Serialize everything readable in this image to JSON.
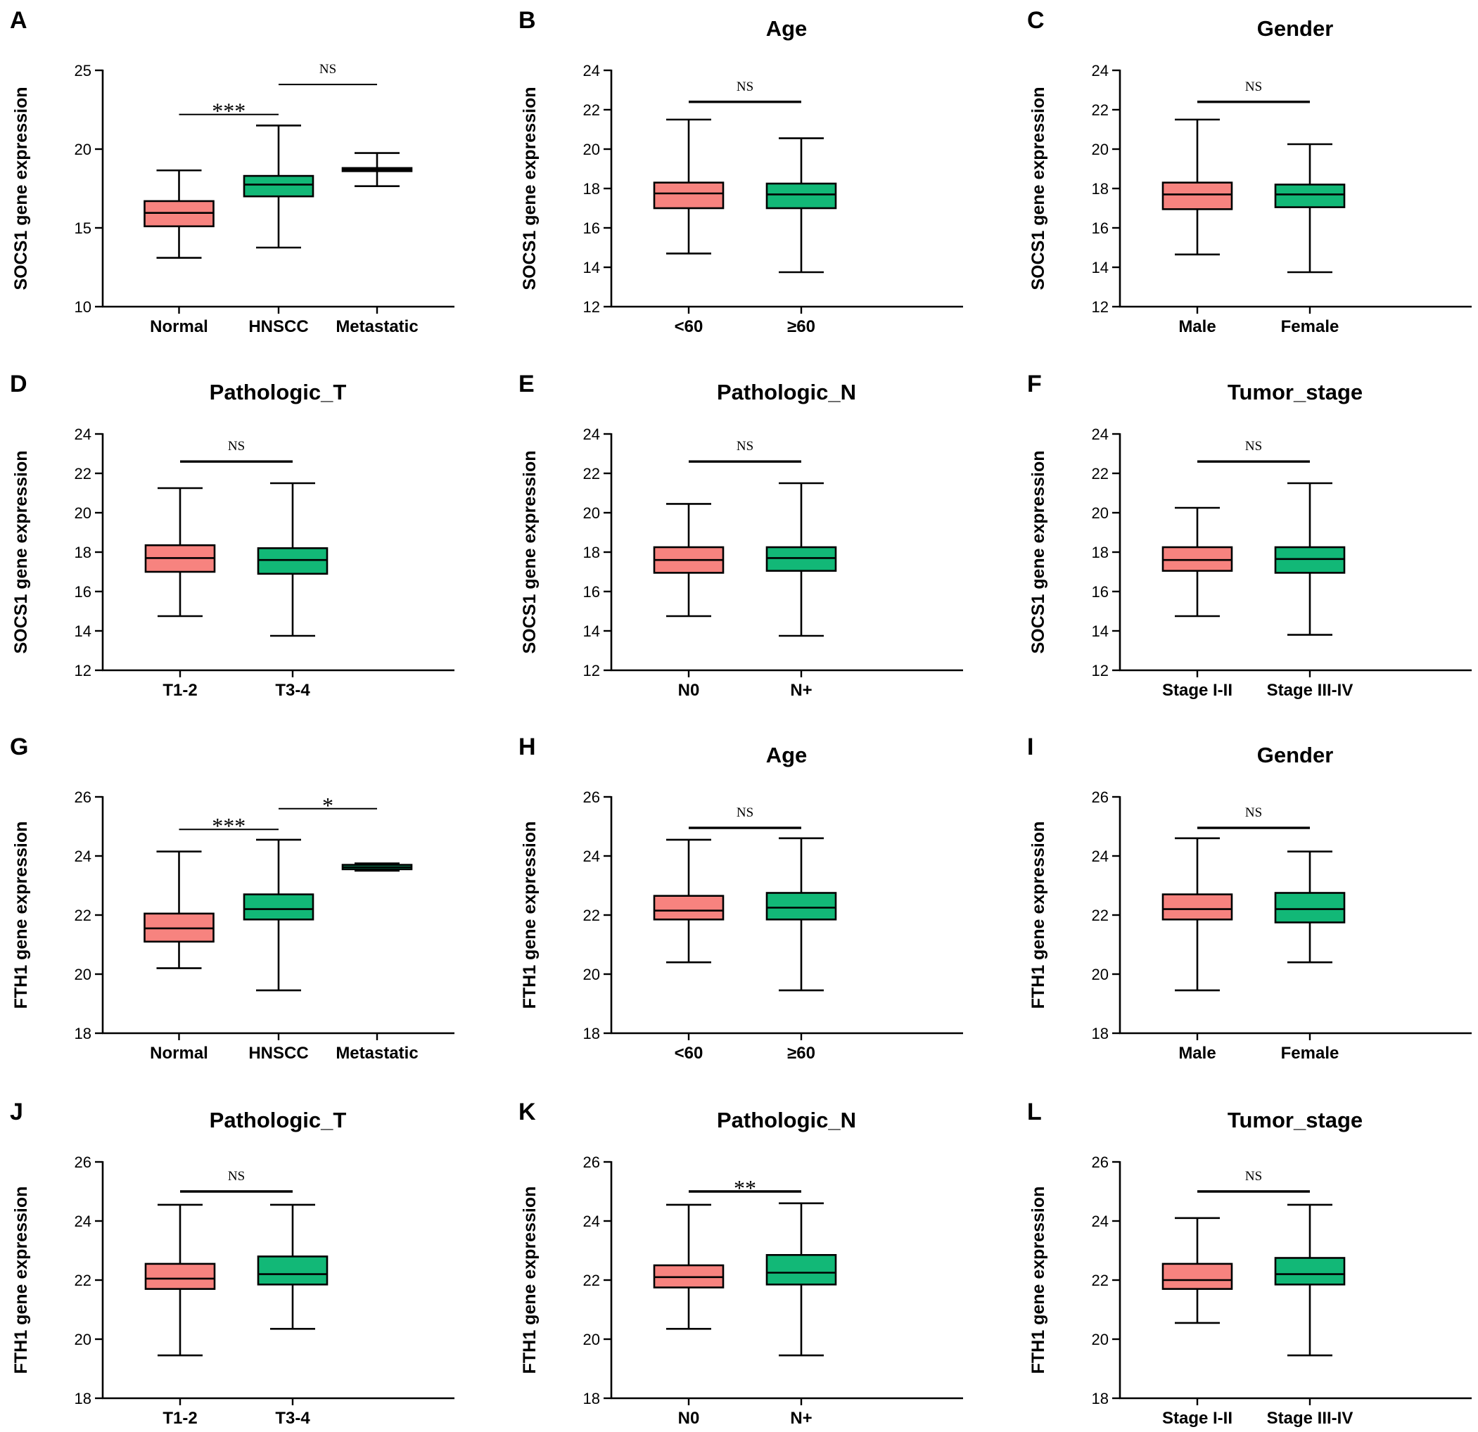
{
  "colors": {
    "pink": "#f7837f",
    "green": "#12b877",
    "line": "#000000"
  },
  "chart_data": [
    {
      "letter": "A",
      "type": "boxplot",
      "title": "",
      "ylabel": "SOCS1 gene expression",
      "ylim": [
        10,
        25
      ],
      "yticks": [
        10,
        15,
        20,
        25
      ],
      "categories": [
        "Normal",
        "HNSCC",
        "Metastatic"
      ],
      "boxes": [
        {
          "min": 13.1,
          "q1": 15.1,
          "median": 15.95,
          "q3": 16.7,
          "max": 18.65,
          "color": "pink"
        },
        {
          "min": 13.75,
          "q1": 17.0,
          "median": 17.75,
          "q3": 18.3,
          "max": 21.5,
          "color": "green"
        },
        {
          "min": 17.65,
          "q1": 18.6,
          "median": 18.7,
          "q3": 18.8,
          "max": 19.75,
          "color": "green"
        }
      ],
      "comparisons": [
        {
          "from": 0,
          "to": 1,
          "label": "***",
          "y": 22.2
        },
        {
          "from": 1,
          "to": 2,
          "label": "NS",
          "y": 24.1
        }
      ]
    },
    {
      "letter": "B",
      "type": "boxplot",
      "title": "Age",
      "ylabel": "SOCS1 gene expression",
      "ylim": [
        12,
        24
      ],
      "yticks": [
        12,
        14,
        16,
        18,
        20,
        22,
        24
      ],
      "categories": [
        "<60",
        "≥60"
      ],
      "boxes": [
        {
          "min": 14.7,
          "q1": 17.0,
          "median": 17.75,
          "q3": 18.3,
          "max": 21.5,
          "color": "pink"
        },
        {
          "min": 13.75,
          "q1": 17.0,
          "median": 17.7,
          "q3": 18.25,
          "max": 20.55,
          "color": "green"
        }
      ],
      "comparisons": [
        {
          "from": 0,
          "to": 1,
          "label": "NS",
          "y": 22.4
        }
      ]
    },
    {
      "letter": "C",
      "type": "boxplot",
      "title": "Gender",
      "ylabel": "SOCS1 gene expression",
      "ylim": [
        12,
        24
      ],
      "yticks": [
        12,
        14,
        16,
        18,
        20,
        22,
        24
      ],
      "categories": [
        "Male",
        "Female"
      ],
      "boxes": [
        {
          "min": 14.65,
          "q1": 16.95,
          "median": 17.7,
          "q3": 18.3,
          "max": 21.5,
          "color": "pink"
        },
        {
          "min": 13.75,
          "q1": 17.05,
          "median": 17.7,
          "q3": 18.2,
          "max": 20.25,
          "color": "green"
        }
      ],
      "comparisons": [
        {
          "from": 0,
          "to": 1,
          "label": "NS",
          "y": 22.4
        }
      ]
    },
    {
      "letter": "D",
      "type": "boxplot",
      "title": "Pathologic_T",
      "ylabel": "SOCS1 gene expression",
      "ylim": [
        12,
        24
      ],
      "yticks": [
        12,
        14,
        16,
        18,
        20,
        22,
        24
      ],
      "categories": [
        "T1-2",
        "T3-4"
      ],
      "boxes": [
        {
          "min": 14.75,
          "q1": 17.0,
          "median": 17.7,
          "q3": 18.35,
          "max": 21.25,
          "color": "pink"
        },
        {
          "min": 13.75,
          "q1": 16.9,
          "median": 17.6,
          "q3": 18.2,
          "max": 21.5,
          "color": "green"
        }
      ],
      "comparisons": [
        {
          "from": 0,
          "to": 1,
          "label": "NS",
          "y": 22.6
        }
      ]
    },
    {
      "letter": "E",
      "type": "boxplot",
      "title": "Pathologic_N",
      "ylabel": "SOCS1 gene expression",
      "ylim": [
        12,
        24
      ],
      "yticks": [
        12,
        14,
        16,
        18,
        20,
        22,
        24
      ],
      "categories": [
        "N0",
        "N+"
      ],
      "boxes": [
        {
          "min": 14.75,
          "q1": 16.95,
          "median": 17.6,
          "q3": 18.25,
          "max": 20.45,
          "color": "pink"
        },
        {
          "min": 13.75,
          "q1": 17.05,
          "median": 17.7,
          "q3": 18.25,
          "max": 21.5,
          "color": "green"
        }
      ],
      "comparisons": [
        {
          "from": 0,
          "to": 1,
          "label": "NS",
          "y": 22.6
        }
      ]
    },
    {
      "letter": "F",
      "type": "boxplot",
      "title": "Tumor_stage",
      "ylabel": "SOCS1 gene expression",
      "ylim": [
        12,
        24
      ],
      "yticks": [
        12,
        14,
        16,
        18,
        20,
        22,
        24
      ],
      "categories": [
        "Stage I-II",
        "Stage III-IV"
      ],
      "boxes": [
        {
          "min": 14.75,
          "q1": 17.05,
          "median": 17.6,
          "q3": 18.25,
          "max": 20.25,
          "color": "pink"
        },
        {
          "min": 13.8,
          "q1": 16.95,
          "median": 17.65,
          "q3": 18.25,
          "max": 21.5,
          "color": "green"
        }
      ],
      "comparisons": [
        {
          "from": 0,
          "to": 1,
          "label": "NS",
          "y": 22.6
        }
      ]
    },
    {
      "letter": "G",
      "type": "boxplot",
      "title": "",
      "ylabel": "FTH1 gene expression",
      "ylim": [
        18,
        26
      ],
      "yticks": [
        18,
        20,
        22,
        24,
        26
      ],
      "categories": [
        "Normal",
        "HNSCC",
        "Metastatic"
      ],
      "boxes": [
        {
          "min": 20.2,
          "q1": 21.1,
          "median": 21.55,
          "q3": 22.05,
          "max": 24.15,
          "color": "pink"
        },
        {
          "min": 19.45,
          "q1": 21.85,
          "median": 22.2,
          "q3": 22.7,
          "max": 24.55,
          "color": "green"
        },
        {
          "min": 23.5,
          "q1": 23.55,
          "median": 23.62,
          "q3": 23.7,
          "max": 23.75,
          "color": "green"
        }
      ],
      "comparisons": [
        {
          "from": 0,
          "to": 1,
          "label": "***",
          "y": 24.9
        },
        {
          "from": 1,
          "to": 2,
          "label": "*",
          "y": 25.6
        }
      ]
    },
    {
      "letter": "H",
      "type": "boxplot",
      "title": "Age",
      "ylabel": "FTH1 gene expression",
      "ylim": [
        18,
        26
      ],
      "yticks": [
        18,
        20,
        22,
        24,
        26
      ],
      "categories": [
        "<60",
        "≥60"
      ],
      "boxes": [
        {
          "min": 20.4,
          "q1": 21.85,
          "median": 22.15,
          "q3": 22.65,
          "max": 24.55,
          "color": "pink"
        },
        {
          "min": 19.45,
          "q1": 21.85,
          "median": 22.25,
          "q3": 22.75,
          "max": 24.6,
          "color": "green"
        }
      ],
      "comparisons": [
        {
          "from": 0,
          "to": 1,
          "label": "NS",
          "y": 24.95
        }
      ]
    },
    {
      "letter": "I",
      "type": "boxplot",
      "title": "Gender",
      "ylabel": "FTH1 gene expression",
      "ylim": [
        18,
        26
      ],
      "yticks": [
        18,
        20,
        22,
        24,
        26
      ],
      "categories": [
        "Male",
        "Female"
      ],
      "boxes": [
        {
          "min": 19.45,
          "q1": 21.85,
          "median": 22.2,
          "q3": 22.7,
          "max": 24.6,
          "color": "pink"
        },
        {
          "min": 20.4,
          "q1": 21.75,
          "median": 22.2,
          "q3": 22.75,
          "max": 24.15,
          "color": "green"
        }
      ],
      "comparisons": [
        {
          "from": 0,
          "to": 1,
          "label": "NS",
          "y": 24.95
        }
      ]
    },
    {
      "letter": "J",
      "type": "boxplot",
      "title": "Pathologic_T",
      "ylabel": "FTH1 gene expression",
      "ylim": [
        18,
        26
      ],
      "yticks": [
        18,
        20,
        22,
        24,
        26
      ],
      "categories": [
        "T1-2",
        "T3-4"
      ],
      "boxes": [
        {
          "min": 19.45,
          "q1": 21.7,
          "median": 22.05,
          "q3": 22.55,
          "max": 24.55,
          "color": "pink"
        },
        {
          "min": 20.35,
          "q1": 21.85,
          "median": 22.2,
          "q3": 22.8,
          "max": 24.55,
          "color": "green"
        }
      ],
      "comparisons": [
        {
          "from": 0,
          "to": 1,
          "label": "NS",
          "y": 25.0
        }
      ]
    },
    {
      "letter": "K",
      "type": "boxplot",
      "title": "Pathologic_N",
      "ylabel": "FTH1 gene expression",
      "ylim": [
        18,
        26
      ],
      "yticks": [
        18,
        20,
        22,
        24,
        26
      ],
      "categories": [
        "N0",
        "N+"
      ],
      "boxes": [
        {
          "min": 20.35,
          "q1": 21.75,
          "median": 22.1,
          "q3": 22.5,
          "max": 24.55,
          "color": "pink"
        },
        {
          "min": 19.45,
          "q1": 21.85,
          "median": 22.25,
          "q3": 22.85,
          "max": 24.6,
          "color": "green"
        }
      ],
      "comparisons": [
        {
          "from": 0,
          "to": 1,
          "label": "**",
          "y": 25.0
        }
      ]
    },
    {
      "letter": "L",
      "type": "boxplot",
      "title": "Tumor_stage",
      "ylabel": "FTH1 gene expression",
      "ylim": [
        18,
        26
      ],
      "yticks": [
        18,
        20,
        22,
        24,
        26
      ],
      "categories": [
        "Stage I-II",
        "Stage III-IV"
      ],
      "boxes": [
        {
          "min": 20.55,
          "q1": 21.7,
          "median": 22.0,
          "q3": 22.55,
          "max": 24.1,
          "color": "pink"
        },
        {
          "min": 19.45,
          "q1": 21.85,
          "median": 22.2,
          "q3": 22.75,
          "max": 24.55,
          "color": "green"
        }
      ],
      "comparisons": [
        {
          "from": 0,
          "to": 1,
          "label": "NS",
          "y": 25.0
        }
      ]
    }
  ]
}
